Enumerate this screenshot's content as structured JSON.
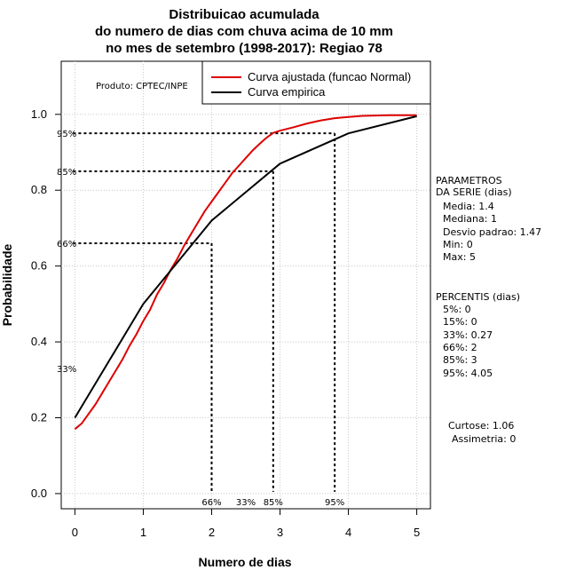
{
  "chart_data": {
    "type": "line",
    "title": [
      "Distribuicao acumulada",
      "do numero de dias com chuva acima de 10 mm",
      "no mes de setembro (1998-2017): Regiao 78"
    ],
    "xlabel": "Numero de dias",
    "ylabel": "Probabilidade",
    "xlim": [
      -0.2,
      5.2
    ],
    "ylim": [
      -0.04,
      1.14
    ],
    "x_ticks": [
      "0",
      "1",
      "2",
      "3",
      "4",
      "5"
    ],
    "y_ticks": [
      "0.0",
      "0.2",
      "0.4",
      "0.6",
      "0.8",
      "1.0"
    ],
    "producer": "Produto: CPTEC/INPE",
    "legend": [
      {
        "label": "Curva ajustada (funcao Normal)",
        "color": "#dd0000"
      },
      {
        "label": "Curva empirica",
        "color": "#000000"
      }
    ],
    "series": [
      {
        "name": "Curva ajustada (funcao Normal)",
        "color": "#dd0000",
        "x": [
          0,
          0.1,
          0.2,
          0.3,
          0.4,
          0.5,
          0.6,
          0.7,
          0.8,
          0.9,
          1.0,
          1.1,
          1.2,
          1.3,
          1.4,
          1.5,
          1.6,
          1.7,
          1.8,
          1.9,
          2.0,
          2.1,
          2.2,
          2.3,
          2.4,
          2.5,
          2.6,
          2.7,
          2.8,
          2.9,
          3.0,
          3.2,
          3.4,
          3.6,
          3.8,
          4.0,
          4.2,
          4.4,
          4.6,
          4.8,
          5.0
        ],
        "y": [
          0.17,
          0.185,
          0.21,
          0.235,
          0.265,
          0.295,
          0.325,
          0.355,
          0.39,
          0.42,
          0.455,
          0.485,
          0.525,
          0.555,
          0.59,
          0.62,
          0.655,
          0.685,
          0.715,
          0.745,
          0.77,
          0.795,
          0.82,
          0.845,
          0.865,
          0.885,
          0.905,
          0.922,
          0.938,
          0.951,
          0.957,
          0.966,
          0.976,
          0.984,
          0.99,
          0.993,
          0.996,
          0.997,
          0.998,
          0.998,
          0.998
        ]
      },
      {
        "name": "Curva empirica",
        "color": "#000000",
        "x": [
          0,
          1,
          2,
          3,
          4,
          5
        ],
        "y": [
          0.2,
          0.5,
          0.72,
          0.87,
          0.95,
          0.995
        ]
      }
    ],
    "percentile_guides": [
      {
        "label": "66%",
        "x": 2.0,
        "y": 0.66
      },
      {
        "label": "85%",
        "x": 2.9,
        "y": 0.85
      },
      {
        "label": "95%",
        "x": 3.8,
        "y": 0.95
      }
    ],
    "left_labels": [
      {
        "label": "95%",
        "y": 0.95
      },
      {
        "label": "85%",
        "y": 0.85
      },
      {
        "label": "66%",
        "y": 0.66
      },
      {
        "label": "33%",
        "y": 0.33
      }
    ],
    "bottom_labels": [
      {
        "label": "66%",
        "x": 2.0
      },
      {
        "label": "33%",
        "x": 2.5
      },
      {
        "label": "85%",
        "x": 2.9
      },
      {
        "label": "95%",
        "x": 3.8
      }
    ]
  },
  "parametros": {
    "heading": [
      "PARAMETROS",
      "DA SERIE (dias)"
    ],
    "lines": [
      "Media: 1.4",
      "Mediana: 1",
      "Desvio padrao: 1.47",
      "Min: 0",
      "Max: 5"
    ]
  },
  "percentis": {
    "heading": "PERCENTIS (dias)",
    "lines": [
      "5%: 0",
      "15%: 0",
      "33%: 0.27",
      "66%: 2",
      "85%: 3",
      "95%: 4.05"
    ]
  },
  "shape": {
    "lines": [
      "Curtose: 1.06",
      "Assimetria: 0"
    ]
  }
}
